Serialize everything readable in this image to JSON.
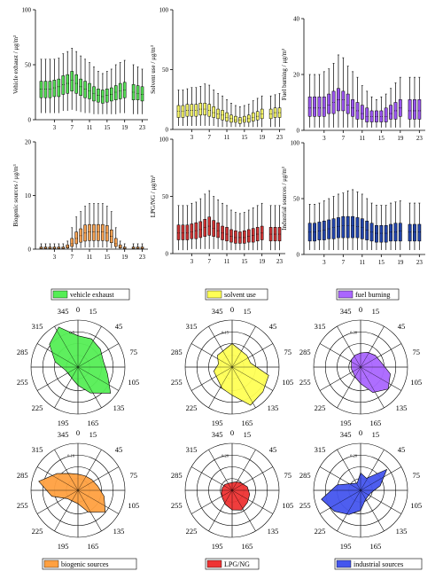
{
  "figure": {
    "x_ticks": [
      3,
      7,
      11,
      15,
      19,
      23
    ],
    "radar_ticks": [
      "0",
      "15",
      "45",
      "75",
      "105",
      "135",
      "165",
      "195",
      "225",
      "255",
      "285",
      "315",
      "345"
    ]
  },
  "chart_data": [
    {
      "type": "box",
      "ylabel": "Vehicle exhaust / μg/m³",
      "ylim": [
        0,
        100
      ],
      "yticks": [
        0,
        50,
        100
      ],
      "color": "#55dd55",
      "hours": [
        0,
        1,
        2,
        3,
        4,
        5,
        6,
        7,
        8,
        9,
        10,
        11,
        12,
        13,
        14,
        15,
        16,
        17,
        18,
        19,
        21,
        22,
        23
      ],
      "stats": [
        [
          6,
          20,
          28,
          35,
          55
        ],
        [
          6,
          20,
          28,
          35,
          55
        ],
        [
          6,
          20,
          28,
          35,
          55
        ],
        [
          6,
          21,
          29,
          36,
          55
        ],
        [
          6,
          21,
          30,
          37,
          56
        ],
        [
          8,
          23,
          32,
          40,
          60
        ],
        [
          8,
          24,
          33,
          41,
          62
        ],
        [
          9,
          26,
          36,
          44,
          65
        ],
        [
          8,
          24,
          33,
          41,
          62
        ],
        [
          7,
          22,
          30,
          37,
          58
        ],
        [
          6,
          20,
          28,
          35,
          55
        ],
        [
          6,
          19,
          26,
          33,
          52
        ],
        [
          5,
          17,
          24,
          30,
          48
        ],
        [
          5,
          16,
          22,
          28,
          44
        ],
        [
          5,
          15,
          21,
          27,
          42
        ],
        [
          5,
          16,
          22,
          28,
          44
        ],
        [
          5,
          17,
          23,
          29,
          46
        ],
        [
          5,
          18,
          25,
          31,
          50
        ],
        [
          6,
          19,
          26,
          33,
          52
        ],
        [
          6,
          20,
          27,
          34,
          54
        ],
        [
          5,
          18,
          25,
          32,
          50
        ],
        [
          5,
          18,
          24,
          31,
          48
        ],
        [
          5,
          17,
          23,
          30,
          46
        ]
      ]
    },
    {
      "type": "box",
      "ylabel": "Solvent use / μg/m³",
      "ylim": [
        0,
        100
      ],
      "yticks": [
        0,
        50,
        100
      ],
      "color": "#f4f467",
      "hours": [
        0,
        1,
        2,
        3,
        4,
        5,
        6,
        7,
        8,
        9,
        10,
        11,
        12,
        13,
        14,
        15,
        16,
        17,
        18,
        19,
        21,
        22,
        23
      ],
      "stats": [
        [
          3,
          10,
          15,
          20,
          33
        ],
        [
          3,
          10,
          15,
          20,
          33
        ],
        [
          3,
          11,
          16,
          21,
          34
        ],
        [
          3,
          11,
          16,
          21,
          35
        ],
        [
          3,
          11,
          16,
          21,
          35
        ],
        [
          3,
          12,
          17,
          22,
          36
        ],
        [
          3,
          12,
          17,
          22,
          38
        ],
        [
          3,
          11,
          16,
          21,
          37
        ],
        [
          3,
          10,
          14,
          19,
          33
        ],
        [
          2,
          9,
          13,
          17,
          30
        ],
        [
          2,
          8,
          12,
          16,
          28
        ],
        [
          2,
          7,
          10,
          14,
          25
        ],
        [
          2,
          6,
          9,
          12,
          22
        ],
        [
          2,
          6,
          8,
          11,
          20
        ],
        [
          2,
          5,
          8,
          10,
          19
        ],
        [
          2,
          6,
          8,
          11,
          20
        ],
        [
          2,
          6,
          9,
          12,
          21
        ],
        [
          2,
          7,
          10,
          14,
          24
        ],
        [
          2,
          8,
          11,
          15,
          26
        ],
        [
          2,
          9,
          13,
          17,
          28
        ],
        [
          2,
          9,
          13,
          17,
          28
        ],
        [
          2,
          10,
          14,
          18,
          29
        ],
        [
          2,
          10,
          14,
          18,
          30
        ]
      ]
    },
    {
      "type": "box",
      "ylabel": "Fuel burning / μg/m³",
      "ylim": [
        0,
        40
      ],
      "yticks": [
        0,
        20,
        40
      ],
      "color": "#9955ee",
      "hours": [
        0,
        1,
        2,
        3,
        4,
        5,
        6,
        7,
        8,
        9,
        10,
        11,
        12,
        13,
        14,
        15,
        16,
        17,
        18,
        19,
        21,
        22,
        23
      ],
      "stats": [
        [
          1,
          5,
          8,
          12,
          20
        ],
        [
          1,
          5,
          8,
          12,
          20
        ],
        [
          1,
          5,
          8,
          12,
          20
        ],
        [
          1,
          5,
          8,
          12,
          21
        ],
        [
          1,
          6,
          9,
          13,
          22
        ],
        [
          1,
          6,
          10,
          14,
          24
        ],
        [
          1,
          7,
          11,
          15,
          27
        ],
        [
          1,
          7,
          11,
          14,
          26
        ],
        [
          1,
          6,
          9,
          13,
          23
        ],
        [
          1,
          5,
          8,
          11,
          21
        ],
        [
          1,
          4,
          7,
          10,
          19
        ],
        [
          1,
          4,
          6,
          9,
          16
        ],
        [
          1,
          3,
          5,
          8,
          14
        ],
        [
          1,
          3,
          5,
          7,
          12
        ],
        [
          1,
          3,
          5,
          7,
          11
        ],
        [
          1,
          3,
          5,
          7,
          12
        ],
        [
          1,
          3,
          5,
          8,
          13
        ],
        [
          1,
          4,
          6,
          9,
          15
        ],
        [
          1,
          4,
          7,
          10,
          17
        ],
        [
          1,
          5,
          8,
          11,
          19
        ],
        [
          1,
          4,
          7,
          11,
          19
        ],
        [
          1,
          4,
          7,
          11,
          19
        ],
        [
          1,
          4,
          7,
          11,
          19
        ]
      ]
    },
    {
      "type": "box",
      "ylabel": "Biogenic sources / μg/m³",
      "ylim": [
        0,
        20
      ],
      "yticks": [
        0,
        10,
        20
      ],
      "color": "#f5a050",
      "hours": [
        0,
        1,
        2,
        3,
        4,
        5,
        6,
        7,
        8,
        9,
        10,
        11,
        12,
        13,
        14,
        15,
        16,
        17,
        18,
        19,
        21,
        22,
        23
      ],
      "stats": [
        [
          0.05,
          0.1,
          0.2,
          0.4,
          1
        ],
        [
          0.05,
          0.1,
          0.2,
          0.4,
          1
        ],
        [
          0.05,
          0.1,
          0.2,
          0.4,
          1
        ],
        [
          0.05,
          0.1,
          0.2,
          0.4,
          1
        ],
        [
          0.05,
          0.1,
          0.2,
          0.4,
          1
        ],
        [
          0.05,
          0.1,
          0.2,
          0.4,
          1
        ],
        [
          0.05,
          0.2,
          0.4,
          0.8,
          1.5
        ],
        [
          0.1,
          0.5,
          1,
          2,
          4
        ],
        [
          0.2,
          1,
          2,
          3.2,
          6
        ],
        [
          0.2,
          1.3,
          2.5,
          3.8,
          7
        ],
        [
          0.3,
          1.5,
          3,
          4.5,
          8
        ],
        [
          0.3,
          1.6,
          3.2,
          4.6,
          8.5
        ],
        [
          0.3,
          1.6,
          3.2,
          4.6,
          8.5
        ],
        [
          0.3,
          1.6,
          3.2,
          4.6,
          8.5
        ],
        [
          0.3,
          1.6,
          3.2,
          4.6,
          8.5
        ],
        [
          0.3,
          1.5,
          3,
          4.4,
          8
        ],
        [
          0.2,
          1.2,
          2.4,
          3.6,
          7
        ],
        [
          0.1,
          0.5,
          1,
          2,
          4
        ],
        [
          0.05,
          0.2,
          0.4,
          0.8,
          1.5
        ],
        [
          0.05,
          0.1,
          0.2,
          0.4,
          1
        ],
        [
          0.05,
          0.1,
          0.2,
          0.4,
          1
        ],
        [
          0.05,
          0.1,
          0.2,
          0.4,
          1
        ],
        [
          0.05,
          0.1,
          0.2,
          0.4,
          1
        ]
      ]
    },
    {
      "type": "box",
      "ylabel": "LPG/NG / μg/m³",
      "ylim": [
        0,
        100
      ],
      "yticks": [
        0,
        50,
        100
      ],
      "color": "#cc3333",
      "hours": [
        0,
        1,
        2,
        3,
        4,
        5,
        6,
        7,
        8,
        9,
        10,
        11,
        12,
        13,
        14,
        15,
        16,
        17,
        18,
        19,
        21,
        22,
        23
      ],
      "stats": [
        [
          3,
          12,
          18,
          25,
          42
        ],
        [
          3,
          12,
          18,
          25,
          42
        ],
        [
          3,
          12,
          18,
          25,
          42
        ],
        [
          4,
          13,
          19,
          26,
          44
        ],
        [
          4,
          13,
          20,
          27,
          45
        ],
        [
          4,
          14,
          21,
          28,
          48
        ],
        [
          4,
          15,
          23,
          30,
          52
        ],
        [
          4,
          16,
          24,
          32,
          55
        ],
        [
          4,
          15,
          22,
          29,
          50
        ],
        [
          4,
          14,
          20,
          27,
          47
        ],
        [
          3,
          12,
          18,
          24,
          44
        ],
        [
          3,
          11,
          17,
          23,
          42
        ],
        [
          3,
          10,
          15,
          21,
          38
        ],
        [
          3,
          9,
          14,
          20,
          36
        ],
        [
          3,
          9,
          14,
          19,
          35
        ],
        [
          3,
          9,
          14,
          20,
          36
        ],
        [
          3,
          10,
          15,
          21,
          38
        ],
        [
          3,
          10,
          16,
          22,
          40
        ],
        [
          3,
          11,
          17,
          23,
          42
        ],
        [
          3,
          12,
          18,
          24,
          44
        ],
        [
          3,
          11,
          17,
          23,
          42
        ],
        [
          3,
          11,
          17,
          23,
          42
        ],
        [
          3,
          11,
          17,
          23,
          42
        ]
      ]
    },
    {
      "type": "box",
      "ylabel": "Industrial sources / μg/m³",
      "ylim": [
        0,
        100
      ],
      "yticks": [
        0,
        50,
        100
      ],
      "color": "#2244aa",
      "hours": [
        0,
        1,
        2,
        3,
        4,
        5,
        6,
        7,
        8,
        9,
        10,
        11,
        12,
        13,
        14,
        15,
        16,
        17,
        18,
        19,
        21,
        22,
        23
      ],
      "stats": [
        [
          4,
          12,
          20,
          28,
          45
        ],
        [
          4,
          12,
          20,
          28,
          45
        ],
        [
          4,
          13,
          21,
          29,
          46
        ],
        [
          4,
          13,
          22,
          30,
          48
        ],
        [
          4,
          14,
          23,
          31,
          50
        ],
        [
          4,
          14,
          24,
          32,
          52
        ],
        [
          4,
          15,
          25,
          33,
          54
        ],
        [
          4,
          15,
          26,
          34,
          55
        ],
        [
          4,
          15,
          26,
          34,
          57
        ],
        [
          4,
          15,
          26,
          34,
          58
        ],
        [
          4,
          15,
          25,
          33,
          56
        ],
        [
          4,
          14,
          24,
          32,
          54
        ],
        [
          4,
          13,
          22,
          30,
          50
        ],
        [
          4,
          12,
          20,
          28,
          46
        ],
        [
          4,
          11,
          19,
          26,
          44
        ],
        [
          4,
          11,
          19,
          26,
          44
        ],
        [
          4,
          11,
          19,
          26,
          44
        ],
        [
          4,
          12,
          20,
          27,
          46
        ],
        [
          4,
          12,
          20,
          28,
          47
        ],
        [
          4,
          12,
          21,
          28,
          48
        ],
        [
          4,
          12,
          20,
          27,
          46
        ],
        [
          4,
          12,
          20,
          27,
          46
        ],
        [
          4,
          12,
          20,
          27,
          46
        ]
      ]
    },
    {
      "type": "radar",
      "legend": "vehicle exhaust",
      "color": "#55ee55",
      "max_label": "0.5",
      "rmax": 0.9,
      "values": [
        0.6,
        0.6,
        0.55,
        0.5,
        0.58,
        0.8,
        0.55,
        0.35,
        0.25,
        0.22,
        0.25,
        0.45,
        0.7,
        0.85
      ]
    },
    {
      "type": "radar",
      "legend": "solvent use",
      "color": "#ffff55",
      "max_label": "0.15",
      "rmax": 0.5,
      "values": [
        0.25,
        0.2,
        0.2,
        0.2,
        0.4,
        0.42,
        0.45,
        0.3,
        0.25,
        0.2,
        0.2,
        0.15,
        0.2,
        0.2
      ]
    },
    {
      "type": "radar",
      "legend": "fuel burning",
      "color": "#aa66ff",
      "max_label": "0.30",
      "rmax": 1.0,
      "values": [
        0.3,
        0.35,
        0.4,
        0.45,
        0.65,
        0.75,
        0.6,
        0.35,
        0.25,
        0.2,
        0.2,
        0.2,
        0.25,
        0.28
      ]
    },
    {
      "type": "radar",
      "legend": "biogenic sources",
      "color": "#ffa040",
      "max_label": "0.16",
      "rmax": 0.35,
      "values": [
        0.12,
        0.12,
        0.13,
        0.15,
        0.2,
        0.26,
        0.18,
        0.1,
        0.09,
        0.1,
        0.2,
        0.3,
        0.2,
        0.14
      ]
    },
    {
      "type": "radar",
      "legend": "LPG/NG",
      "color": "#ee3333",
      "max_label": "0.20",
      "rmax": 0.6,
      "values": [
        0.1,
        0.12,
        0.15,
        0.2,
        0.23,
        0.25,
        0.28,
        0.25,
        0.2,
        0.16,
        0.14,
        0.13,
        0.12,
        0.1
      ]
    },
    {
      "type": "radar",
      "legend": "industrial sources",
      "color": "#4455ee",
      "max_label": "0.20",
      "rmax": 0.35,
      "values": [
        0.13,
        0.1,
        0.25,
        0.15,
        0.08,
        0.07,
        0.08,
        0.15,
        0.2,
        0.25,
        0.3,
        0.18,
        0.08,
        0.06
      ]
    }
  ]
}
